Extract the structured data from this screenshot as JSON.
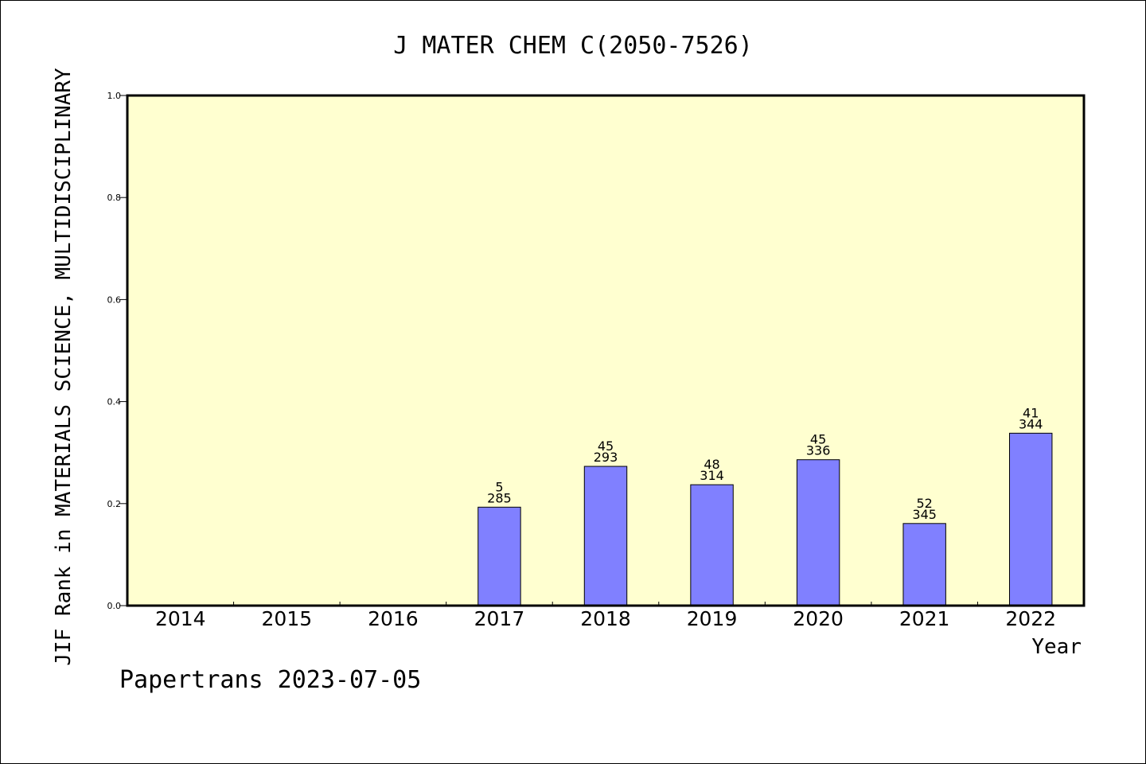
{
  "chart_data": {
    "type": "bar",
    "title": "J MATER CHEM C(2050-7526)",
    "ylabel": "JIF Rank in MATERIALS SCIENCE, MULTIDISCIPLINARY",
    "xlabel": "Year",
    "categories": [
      "2014",
      "2015",
      "2016",
      "2017",
      "2018",
      "2019",
      "2020",
      "2021",
      "2022"
    ],
    "values": [
      null,
      null,
      null,
      0.193,
      0.273,
      0.237,
      0.286,
      0.161,
      0.338
    ],
    "bar_labels": [
      null,
      null,
      null,
      {
        "rank": "5",
        "total": "285"
      },
      {
        "rank": "45",
        "total": "293"
      },
      {
        "rank": "48",
        "total": "314"
      },
      {
        "rank": "45",
        "total": "336"
      },
      {
        "rank": "52",
        "total": "345"
      },
      {
        "rank": "41",
        "total": "344"
      }
    ],
    "ylim": [
      0,
      1.0
    ],
    "yticks": [
      "0.0",
      "0.2",
      "0.4",
      "0.6",
      "0.8",
      "1.0"
    ],
    "grid": false,
    "colors": {
      "plot_background": "#ffffd0",
      "bar_fill": "#8080ff",
      "bar_edge": "#000000",
      "axis": "#000000"
    }
  },
  "footer": "Papertrans 2023-07-05"
}
